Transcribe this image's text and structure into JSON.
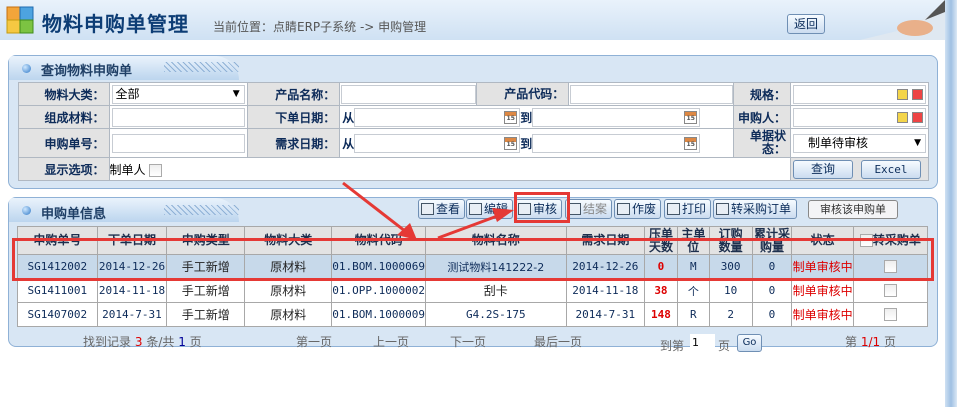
{
  "header": {
    "title": "物料申购单管理",
    "breadcrumb": "当前位置：点睛ERP子系统 -> 申购管理",
    "back_label": "返回"
  },
  "query": {
    "title": "查询物料申购单",
    "fields": {
      "category_label": "物料大类：",
      "category_value": "全部",
      "product_name_label": "产品名称：",
      "product_code_label": "产品代码：",
      "spec_label": "规格：",
      "material_label": "组成材料：",
      "order_date_label": "下单日期：",
      "requester_label": "申购人：",
      "order_no_label": "申购单号：",
      "need_date_label": "需求日期：",
      "status_label": "单据状态：",
      "status_value": "制单待审核",
      "display_label": "显示选项：",
      "creator_option": "制单人",
      "from": "从",
      "to": "到",
      "calendar_text": "15"
    },
    "search_label": "查询",
    "excel_label": "Excel"
  },
  "list": {
    "title": "申购单信息",
    "toolbar": [
      {
        "label": "查看",
        "icon": "view-icon",
        "enabled": true
      },
      {
        "label": "编辑",
        "icon": "edit-icon",
        "enabled": true
      },
      {
        "label": "审核",
        "icon": "approve-icon",
        "enabled": true
      },
      {
        "label": "结案",
        "icon": "close-case-icon",
        "enabled": false
      },
      {
        "label": "作废",
        "icon": "void-icon",
        "enabled": true
      },
      {
        "label": "打印",
        "icon": "print-icon",
        "enabled": true
      },
      {
        "label": "转采购订单",
        "icon": "convert-icon",
        "enabled": true
      }
    ],
    "tooltip": "审核该申购单",
    "columns": [
      "申购单号",
      "下单日期",
      "申购类型",
      "物料大类",
      "物料代码",
      "物料名称",
      "需求日期",
      "压单天数",
      "主单位",
      "订购数量",
      "累计采购量",
      "状态",
      "转采购单"
    ],
    "rows": [
      [
        "SG1412002",
        "2014-12-26",
        "手工新增",
        "原材料",
        "01.BOM.1000069",
        "测试物料141222-2",
        "2014-12-26",
        "0",
        "M",
        "300",
        "0",
        "制单审核中"
      ],
      [
        "SG1411001",
        "2014-11-18",
        "手工新增",
        "原材料",
        "01.OPP.1000002",
        "刮卡",
        "2014-11-18",
        "38",
        "个",
        "10",
        "0",
        "制单审核中"
      ],
      [
        "SG1407002",
        "2014-7-31",
        "手工新增",
        "原材料",
        "01.BOM.1000009",
        "G4.2S-175",
        "2014-7-31",
        "148",
        "R",
        "2",
        "0",
        "制单审核中"
      ]
    ],
    "pagination": {
      "found_prefix": "找到记录",
      "count": "3",
      "mid": "条/共",
      "pages": "1",
      "suffix": "页",
      "first": "第一页",
      "prev": "上一页",
      "next": "下一页",
      "last": "最后一页",
      "goto_prefix": "到第",
      "goto_value": "1",
      "goto_suffix": "页",
      "go_label": "Go",
      "page_prefix": "第",
      "page_current": "1/1",
      "page_suffix": "页"
    }
  },
  "colors": {
    "accent": "#0d3d75",
    "highlight": "#e53935",
    "status": "#dd0000"
  }
}
